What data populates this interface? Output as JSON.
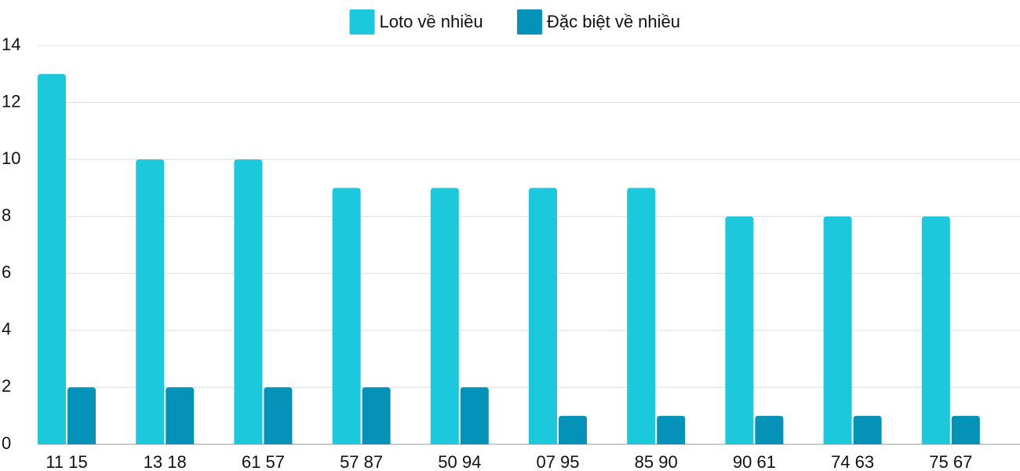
{
  "chart_data": {
    "type": "bar",
    "categories": [
      "11 15",
      "13 18",
      "61 57",
      "57 87",
      "50 94",
      "07 95",
      "85 90",
      "90 61",
      "74 63",
      "75 67"
    ],
    "series": [
      {
        "name": "Loto về nhiều",
        "color": "#1bc8dc",
        "values": [
          13,
          10,
          10,
          9,
          9,
          9,
          9,
          8,
          8,
          8
        ]
      },
      {
        "name": "Đặc biệt về nhiều",
        "color": "#0592b8",
        "values": [
          2,
          2,
          2,
          2,
          2,
          1,
          1,
          1,
          1,
          1
        ]
      }
    ],
    "ylim": [
      0,
      14
    ],
    "yticks": [
      0,
      2,
      4,
      6,
      8,
      10,
      12,
      14
    ],
    "grid": true,
    "legend": "top"
  }
}
